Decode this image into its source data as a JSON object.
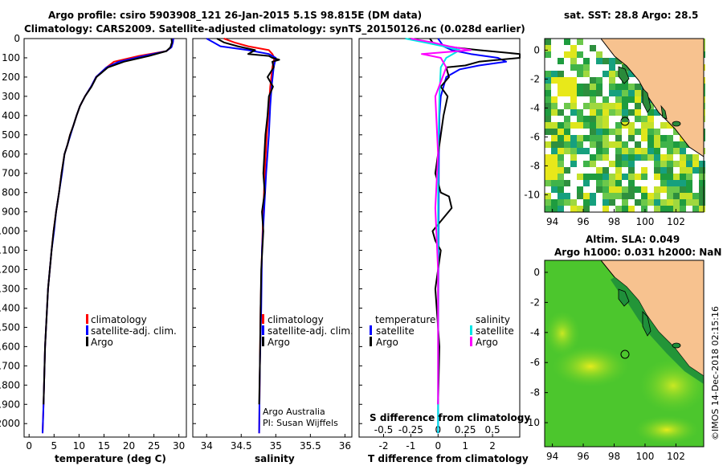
{
  "title": {
    "line1": "Argo profile: csiro 5903908_121 26-Jan-2015 5.1S 98.815E (DM data)",
    "line2": "Climatology: CARS2009. Satellite-adjusted climatology: synTS_20150126.nc (0.028d earlier)"
  },
  "colors": {
    "climatology": "#ff0000",
    "satellite": "#0000ff",
    "argo": "#000000",
    "satellite_s": "#00e5e5",
    "argo_s": "#ff00ff",
    "land": "#f7c28f"
  },
  "depth_axis": {
    "ticks": [
      "0",
      "100",
      "200",
      "300",
      "400",
      "500",
      "600",
      "700",
      "800",
      "900",
      "1000",
      "1100",
      "1200",
      "1300",
      "1400",
      "1500",
      "1600",
      "1700",
      "1800",
      "1900",
      "2000"
    ],
    "ylim": [
      0,
      2070
    ]
  },
  "panels": {
    "temperature": {
      "xlabel": "temperature (deg C)",
      "xticks": [
        "0",
        "5",
        "10",
        "15",
        "20",
        "25",
        "30"
      ],
      "legend": [
        "climatology",
        "satellite-adj. clim.",
        "Argo"
      ]
    },
    "salinity": {
      "xlabel": "salinity",
      "xticks": [
        "34",
        "34.5",
        "35",
        "35.5",
        "36"
      ],
      "legend": [
        "climatology",
        "satellite-adj. clim.",
        "Argo"
      ],
      "credit1": "Argo Australia",
      "credit2": "PI: Susan Wijffels"
    },
    "difference": {
      "xlabel": "T difference from climatology",
      "xticks": [
        "-2",
        "-1",
        "0",
        "1",
        "2"
      ],
      "s_label": "S difference from climatology",
      "s_ticks": [
        "-0.5",
        "-0.25",
        "0",
        "0.25",
        "0.5"
      ],
      "legend_t_title": "temperature",
      "legend_s_title": "salinity",
      "legend_t": [
        "satellite",
        "Argo"
      ],
      "legend_s": [
        "satellite",
        "Argo"
      ]
    }
  },
  "maps": {
    "sst": {
      "title": "sat. SST: 28.8 Argo: 28.5",
      "yticks": [
        "0",
        "-2",
        "-4",
        "-6",
        "-8",
        "-10"
      ],
      "xticks": [
        "94",
        "96",
        "98",
        "100",
        "102"
      ]
    },
    "sla": {
      "title1": "Altim. SLA: 0.049",
      "title2": "Argo h1000: 0.031 h2000: NaN",
      "yticks": [
        "0",
        "-2",
        "-4",
        "-6",
        "-8",
        "-10"
      ],
      "xticks": [
        "94",
        "96",
        "98",
        "100",
        "102"
      ]
    }
  },
  "stamp": "©IMOS 14-Dec-2018 02:15:16",
  "chart_data": [
    {
      "type": "line",
      "title": "",
      "xlabel": "temperature (deg C)",
      "ylabel": "",
      "xlim": [
        -1,
        31.5
      ],
      "ylim": [
        0,
        2070
      ],
      "y_inverted": true,
      "series": [
        {
          "name": "climatology",
          "x": [
            28.9,
            28.8,
            28.5,
            27.5,
            22,
            17,
            15.5,
            13.4,
            12.4,
            11.2,
            10.2,
            9.5,
            8.9,
            8.2,
            7.7,
            7.1,
            6.5,
            6.0,
            5.4,
            4.9,
            4.5,
            3.8,
            3.2,
            2.9,
            2.7
          ],
          "y": [
            0,
            20,
            45,
            65,
            90,
            120,
            150,
            200,
            250,
            300,
            350,
            400,
            450,
            500,
            550,
            600,
            700,
            800,
            900,
            1000,
            1100,
            1300,
            1600,
            1900,
            2050
          ]
        },
        {
          "name": "satellite-adj. clim.",
          "x": [
            28.9,
            28.8,
            28.5,
            27.5,
            23,
            18,
            15.5,
            13.4,
            12.4,
            11.2,
            10.2,
            9.5,
            8.9,
            8.3,
            7.7,
            7.1,
            6.6,
            6.0,
            5.4,
            5.0,
            4.5,
            3.8,
            3.2,
            2.9,
            2.7
          ],
          "y": [
            0,
            20,
            45,
            65,
            90,
            120,
            150,
            200,
            250,
            300,
            350,
            400,
            450,
            500,
            550,
            600,
            700,
            800,
            900,
            1000,
            1100,
            1300,
            1600,
            1900,
            2050
          ]
        },
        {
          "name": "Argo",
          "x": [
            28.5,
            28.6,
            28.3,
            27.5,
            24,
            19,
            15.8,
            13.5,
            12.5,
            11.2,
            10.2,
            9.5,
            8.9,
            8.2,
            7.7,
            7.1,
            6.5,
            6.0,
            5.4,
            4.9,
            4.5,
            3.8,
            3.2,
            2.9
          ],
          "y": [
            0,
            20,
            45,
            65,
            90,
            120,
            150,
            200,
            250,
            300,
            350,
            400,
            450,
            500,
            550,
            600,
            700,
            800,
            900,
            1000,
            1100,
            1300,
            1600,
            1900
          ]
        }
      ]
    },
    {
      "type": "line",
      "title": "",
      "xlabel": "salinity",
      "ylabel": "",
      "xlim": [
        33.8,
        36.1
      ],
      "ylim": [
        0,
        2070
      ],
      "y_inverted": true,
      "series": [
        {
          "name": "climatology",
          "x": [
            34.25,
            34.4,
            34.6,
            34.9,
            34.95,
            34.98,
            34.95,
            34.92,
            34.9,
            34.87,
            34.84,
            34.82,
            34.8,
            34.78,
            34.77,
            34.76
          ],
          "y": [
            0,
            20,
            40,
            60,
            80,
            100,
            150,
            250,
            350,
            500,
            700,
            900,
            1100,
            1400,
            1700,
            2050
          ]
        },
        {
          "name": "satellite-adj. clim.",
          "x": [
            34.0,
            34.1,
            34.2,
            34.6,
            34.9,
            35.0,
            34.97,
            34.94,
            34.92,
            34.9,
            34.86,
            34.83,
            34.8,
            34.79,
            34.77,
            34.76
          ],
          "y": [
            0,
            20,
            40,
            60,
            80,
            100,
            150,
            250,
            350,
            500,
            700,
            900,
            1100,
            1400,
            1700,
            2050
          ]
        },
        {
          "name": "Argo",
          "x": [
            34.15,
            34.25,
            34.45,
            34.7,
            34.6,
            34.9,
            34.95,
            35.05,
            34.95,
            34.97,
            34.88,
            34.96,
            34.9,
            34.88,
            34.85,
            34.82,
            34.84,
            34.8,
            34.82,
            34.79,
            34.78,
            34.77,
            34.76
          ],
          "y": [
            0,
            20,
            40,
            60,
            80,
            90,
            100,
            110,
            120,
            150,
            200,
            250,
            300,
            400,
            500,
            700,
            800,
            900,
            1000,
            1200,
            1400,
            1700,
            1900
          ]
        }
      ]
    },
    {
      "type": "line",
      "title": "",
      "xlabel": "T difference from climatology",
      "ylabel": "",
      "xlim": [
        -2.9,
        3
      ],
      "ylim": [
        0,
        2070
      ],
      "y_inverted": true,
      "series": [
        {
          "name": "satellite",
          "x": [
            0,
            0.1,
            0.2,
            0.5,
            1.2,
            2.2,
            2.5,
            1.5,
            0.8,
            0.3,
            0.1,
            0.05,
            0.03,
            0.02,
            0.01,
            0.0
          ],
          "y": [
            0,
            20,
            40,
            60,
            80,
            100,
            120,
            140,
            160,
            200,
            300,
            400,
            600,
            900,
            1400,
            2050
          ]
        },
        {
          "name": "Argo",
          "x": [
            -0.3,
            -0.2,
            0.2,
            1.5,
            3.0,
            3.0,
            1.5,
            1.0,
            0.3,
            0.4,
            0.1,
            0.35,
            0.2,
            0.1,
            -0.1,
            0.1,
            0.4,
            0.5,
            -0.2,
            -0.1,
            0.1,
            -0.1,
            0.05,
            0.0
          ],
          "y": [
            0,
            20,
            40,
            60,
            80,
            100,
            120,
            140,
            150,
            200,
            250,
            300,
            400,
            500,
            700,
            800,
            820,
            880,
            1000,
            1050,
            1100,
            1300,
            1600,
            1900
          ]
        },
        {
          "name": "salinity satellite",
          "x": [
            -1.2,
            -0.5,
            0.2,
            0.8,
            0.3,
            0.1,
            0.05,
            0.0,
            0.0,
            0.0
          ],
          "y": [
            0,
            20,
            40,
            60,
            100,
            150,
            300,
            600,
            1200,
            2050
          ]
        },
        {
          "name": "salinity Argo",
          "x": [
            -1.0,
            -0.2,
            0.4,
            1.2,
            -0.6,
            0.1,
            0.3,
            -0.1,
            0.0,
            -0.1,
            0.0,
            0.0
          ],
          "y": [
            0,
            20,
            40,
            60,
            80,
            100,
            150,
            300,
            600,
            880,
            1200,
            1900
          ]
        }
      ]
    }
  ]
}
